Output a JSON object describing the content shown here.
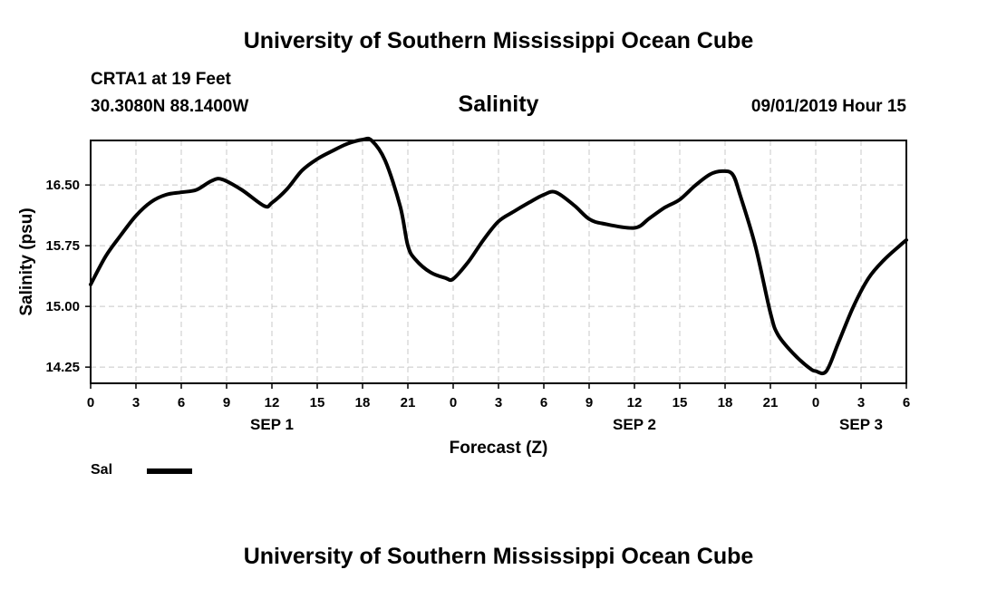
{
  "header": {
    "title": "University of Southern Mississippi Ocean Cube",
    "station": "CRTA1 at 19 Feet",
    "coords": "30.3080N 88.1400W",
    "timestamp": "09/01/2019 Hour 15"
  },
  "footer": {
    "title": "University of Southern Mississippi Ocean Cube"
  },
  "legend": {
    "label": "Sal",
    "color": "#000000"
  },
  "chart_data": {
    "type": "line",
    "title": "Salinity",
    "xlabel": "Forecast (Z)",
    "ylabel": "Salinity (psu)",
    "x_unit": "hours since SEP 1 00Z",
    "xlim": [
      0,
      54
    ],
    "ylim": [
      14.05,
      17.05
    ],
    "grid": true,
    "x_ticks": [
      {
        "v": 0,
        "label": "0"
      },
      {
        "v": 3,
        "label": "3"
      },
      {
        "v": 6,
        "label": "6"
      },
      {
        "v": 9,
        "label": "9"
      },
      {
        "v": 12,
        "label": "12"
      },
      {
        "v": 15,
        "label": "15"
      },
      {
        "v": 18,
        "label": "18"
      },
      {
        "v": 21,
        "label": "21"
      },
      {
        "v": 24,
        "label": "0"
      },
      {
        "v": 27,
        "label": "3"
      },
      {
        "v": 30,
        "label": "6"
      },
      {
        "v": 33,
        "label": "9"
      },
      {
        "v": 36,
        "label": "12"
      },
      {
        "v": 39,
        "label": "15"
      },
      {
        "v": 42,
        "label": "18"
      },
      {
        "v": 45,
        "label": "21"
      },
      {
        "v": 48,
        "label": "0"
      },
      {
        "v": 51,
        "label": "3"
      },
      {
        "v": 54,
        "label": "6"
      }
    ],
    "day_labels": [
      {
        "v": 12,
        "label": "SEP 1"
      },
      {
        "v": 36,
        "label": "SEP 2"
      },
      {
        "v": 51,
        "label": "SEP 3"
      }
    ],
    "y_ticks": [
      {
        "v": 14.25,
        "label": "14.25"
      },
      {
        "v": 15.0,
        "label": "15.00"
      },
      {
        "v": 15.75,
        "label": "15.75"
      },
      {
        "v": 16.5,
        "label": "16.50"
      }
    ],
    "series": [
      {
        "name": "Sal",
        "x": [
          0,
          1,
          2,
          3,
          4,
          5,
          6,
          7,
          8,
          8.7,
          10,
          11.5,
          12,
          13,
          14,
          15,
          16,
          17,
          18,
          18.6,
          19.5,
          20.5,
          21,
          21.5,
          22.5,
          23.5,
          24,
          25,
          26,
          27,
          28,
          29,
          30,
          30.8,
          32,
          33,
          34,
          36,
          37,
          38,
          39,
          40,
          41,
          41.8,
          42.5,
          43,
          44,
          45,
          45.5,
          46.5,
          47.5,
          48,
          48.7,
          49.5,
          50.5,
          51.5,
          52.5,
          53.5,
          54
        ],
        "y": [
          15.27,
          15.62,
          15.88,
          16.12,
          16.29,
          16.38,
          16.41,
          16.44,
          16.55,
          16.57,
          16.44,
          16.24,
          16.28,
          16.45,
          16.68,
          16.82,
          16.92,
          17.01,
          17.06,
          17.05,
          16.8,
          16.23,
          15.75,
          15.58,
          15.42,
          15.35,
          15.34,
          15.55,
          15.82,
          16.05,
          16.17,
          16.28,
          16.38,
          16.41,
          16.25,
          16.08,
          16.02,
          15.97,
          16.09,
          16.22,
          16.32,
          16.49,
          16.63,
          16.67,
          16.63,
          16.37,
          15.75,
          14.92,
          14.65,
          14.42,
          14.25,
          14.2,
          14.2,
          14.55,
          15.0,
          15.35,
          15.57,
          15.74,
          15.82
        ]
      }
    ]
  }
}
